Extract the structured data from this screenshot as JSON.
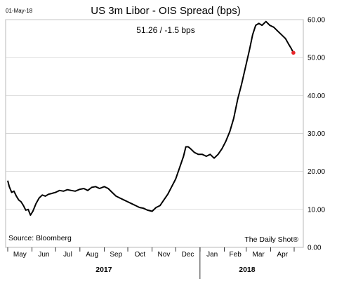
{
  "date_stamp": "01-May-18",
  "title": "US 3m Libor - OIS Spread (bps)",
  "subtitle": "51.26  /  -1.5 bps",
  "source": "Source: Bloomberg",
  "brand": "The Daily Shot®",
  "colors": {
    "line": "#000000",
    "last_point": "#e8262a",
    "grid": "#c8c8c8"
  },
  "chart_data": {
    "type": "line",
    "title": "US 3m Libor - OIS Spread (bps)",
    "x_start": "2017-05-01",
    "x_end": "2018-05-01",
    "ylim": [
      0,
      60
    ],
    "yticks": [
      0,
      10,
      20,
      30,
      40,
      50,
      60
    ],
    "ytick_labels": [
      "0.00",
      "10.00",
      "20.00",
      "30.00",
      "40.00",
      "50.00",
      "60.00"
    ],
    "y_axis_side": "right",
    "grid": true,
    "month_labels": [
      "May",
      "Jun",
      "Jul",
      "Aug",
      "Sep",
      "Oct",
      "Nov",
      "Dec",
      "Jan",
      "Feb",
      "Mar",
      "Apr"
    ],
    "year_labels": [
      "2017",
      "2018"
    ],
    "last_value": 51.26,
    "change": -1.5,
    "series": [
      {
        "x": [
          "2017-05-01",
          "2017-05-03",
          "2017-05-06",
          "2017-05-09",
          "2017-05-12",
          "2017-05-15",
          "2017-05-18",
          "2017-05-21",
          "2017-05-24",
          "2017-05-27",
          "2017-05-30",
          "2017-06-02",
          "2017-06-06",
          "2017-06-10",
          "2017-06-14",
          "2017-06-18",
          "2017-06-22",
          "2017-06-26",
          "2017-07-01",
          "2017-07-06",
          "2017-07-11",
          "2017-07-16",
          "2017-07-21",
          "2017-07-26",
          "2017-08-01",
          "2017-08-06",
          "2017-08-11",
          "2017-08-16",
          "2017-08-21",
          "2017-08-26",
          "2017-09-01",
          "2017-09-06",
          "2017-09-11",
          "2017-09-16",
          "2017-09-21",
          "2017-09-26",
          "2017-10-01",
          "2017-10-06",
          "2017-10-11",
          "2017-10-16",
          "2017-10-21",
          "2017-10-26",
          "2017-11-01",
          "2017-11-06",
          "2017-11-11",
          "2017-11-16",
          "2017-11-21",
          "2017-11-26",
          "2017-12-01",
          "2017-12-06",
          "2017-12-11",
          "2017-12-14",
          "2017-12-17",
          "2017-12-20",
          "2017-12-25",
          "2017-12-30",
          "2018-01-04",
          "2018-01-09",
          "2018-01-14",
          "2018-01-19",
          "2018-01-24",
          "2018-01-29",
          "2018-02-03",
          "2018-02-08",
          "2018-02-13",
          "2018-02-18",
          "2018-02-23",
          "2018-02-28",
          "2018-03-05",
          "2018-03-09",
          "2018-03-13",
          "2018-03-17",
          "2018-03-21",
          "2018-03-26",
          "2018-03-31",
          "2018-04-05",
          "2018-04-10",
          "2018-04-15",
          "2018-04-20",
          "2018-04-24",
          "2018-04-27",
          "2018-04-30"
        ],
        "y": [
          17.6,
          16.0,
          14.5,
          14.8,
          13.5,
          12.5,
          12.0,
          11.0,
          9.8,
          10.0,
          8.5,
          9.5,
          11.5,
          13.0,
          13.8,
          13.5,
          14.0,
          14.2,
          14.5,
          15.0,
          14.8,
          15.2,
          15.0,
          14.8,
          15.3,
          15.5,
          15.0,
          15.8,
          16.0,
          15.5,
          16.0,
          15.5,
          14.5,
          13.5,
          13.0,
          12.5,
          12.0,
          11.5,
          11.0,
          10.5,
          10.3,
          9.8,
          9.5,
          10.5,
          11.0,
          12.5,
          14.0,
          16.0,
          18.0,
          21.0,
          24.0,
          26.5,
          26.5,
          26.0,
          25.0,
          24.5,
          24.5,
          24.0,
          24.5,
          23.5,
          24.5,
          26.0,
          28.0,
          30.5,
          34.0,
          39.0,
          43.0,
          47.5,
          52.0,
          56.0,
          58.5,
          59.0,
          58.5,
          59.5,
          58.5,
          58.0,
          57.0,
          56.0,
          55.0,
          53.5,
          52.5,
          51.26
        ]
      }
    ]
  }
}
